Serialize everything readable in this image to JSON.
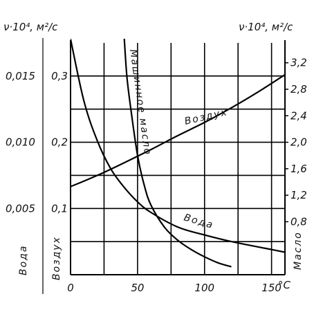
{
  "chart_data": {
    "type": "line",
    "left_axis_title": "ν·10⁴, м²/с",
    "right_axis_title": "ν·10⁴, м²/с",
    "x_axis": {
      "unit": "°C",
      "range": [
        0,
        160
      ],
      "tick_labels": [
        "0",
        "50",
        "100",
        "150"
      ]
    },
    "y_axes": [
      {
        "name": "Вода",
        "position": "left-outer",
        "range": [
          0,
          0.0175
        ],
        "tick_labels": [
          "0,005",
          "0,010",
          "0,015"
        ]
      },
      {
        "name": "Воздух",
        "position": "left-inner",
        "range": [
          0,
          0.35
        ],
        "tick_labels": [
          "0,1",
          "0,2",
          "0,3"
        ]
      },
      {
        "name": "Масло",
        "position": "right",
        "range": [
          0,
          3.5
        ],
        "tick_labels": [
          "0,8",
          "1,2",
          "1,6",
          "2,0",
          "2,4",
          "2,8",
          "3,2"
        ]
      }
    ],
    "grid": true,
    "series": [
      {
        "name": "Вода",
        "axis": "Вода",
        "x": [
          0,
          10,
          20,
          30,
          40,
          50,
          60,
          80,
          100,
          120,
          150,
          160
        ],
        "y": [
          0.0178,
          0.0131,
          0.0101,
          0.008,
          0.0066,
          0.0055,
          0.0047,
          0.0036,
          0.003,
          0.0025,
          0.0019,
          0.0017
        ]
      },
      {
        "name": "Воздух",
        "axis": "Воздух",
        "x": [
          0,
          20,
          40,
          60,
          80,
          100,
          120,
          140,
          160
        ],
        "y": [
          0.133,
          0.15,
          0.169,
          0.189,
          0.21,
          0.23,
          0.252,
          0.276,
          0.302
        ]
      },
      {
        "name": "Машинное масло",
        "axis": "Масло",
        "x": [
          40,
          42,
          45,
          50,
          55,
          60,
          70,
          80,
          90,
          100,
          110,
          120
        ],
        "y": [
          3.6,
          3.0,
          2.5,
          1.8,
          1.35,
          1.05,
          0.72,
          0.52,
          0.38,
          0.27,
          0.18,
          0.12
        ]
      }
    ]
  }
}
